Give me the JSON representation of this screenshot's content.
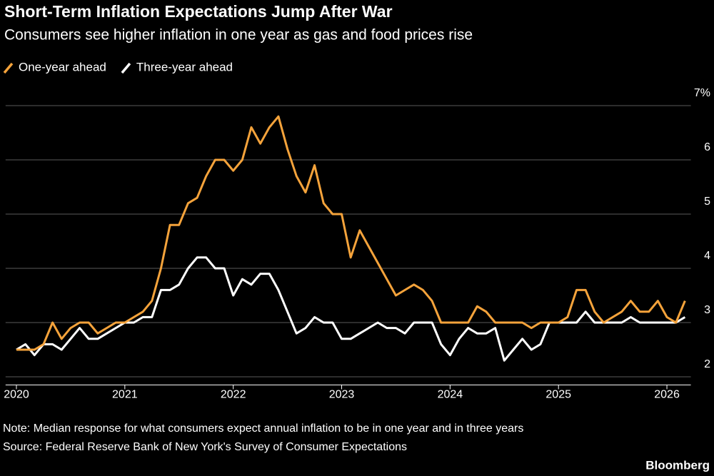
{
  "chart_data": {
    "type": "line",
    "title": "Short-Term Inflation Expectations Jump After War",
    "subtitle": "Consumers see higher inflation in one year as gas and food prices rise",
    "note": "Note: Median response for what consumers expect annual inflation to be in one year and in three years",
    "source": "Source: Federal Reserve Bank of New York's Survey of Consumer Expectations",
    "credit": "Bloomberg",
    "x": [
      "2020-01",
      "2020-02",
      "2020-03",
      "2020-04",
      "2020-05",
      "2020-06",
      "2020-07",
      "2020-08",
      "2020-09",
      "2020-10",
      "2020-11",
      "2020-12",
      "2021-01",
      "2021-02",
      "2021-03",
      "2021-04",
      "2021-05",
      "2021-06",
      "2021-07",
      "2021-08",
      "2021-09",
      "2021-10",
      "2021-11",
      "2021-12",
      "2022-01",
      "2022-02",
      "2022-03",
      "2022-04",
      "2022-05",
      "2022-06",
      "2022-07",
      "2022-08",
      "2022-09",
      "2022-10",
      "2022-11",
      "2022-12",
      "2023-01",
      "2023-02",
      "2023-03",
      "2023-04",
      "2023-05",
      "2023-06",
      "2023-07",
      "2023-08",
      "2023-09",
      "2023-10",
      "2023-11",
      "2023-12",
      "2024-01",
      "2024-02",
      "2024-03",
      "2024-04",
      "2024-05",
      "2024-06",
      "2024-07",
      "2024-08",
      "2024-09",
      "2024-10",
      "2024-11",
      "2024-12",
      "2025-01",
      "2025-02",
      "2025-03",
      "2025-04",
      "2025-05",
      "2025-06",
      "2025-07",
      "2025-08",
      "2025-09",
      "2025-10",
      "2025-11",
      "2025-12",
      "2026-01",
      "2026-02",
      "2026-03"
    ],
    "series": [
      {
        "name": "One-year ahead",
        "color": "#f5a33b",
        "values": [
          2.5,
          2.5,
          2.5,
          2.6,
          3.0,
          2.7,
          2.9,
          3.0,
          3.0,
          2.8,
          2.9,
          3.0,
          3.0,
          3.1,
          3.2,
          3.4,
          4.0,
          4.8,
          4.8,
          5.2,
          5.3,
          5.7,
          6.0,
          6.0,
          5.8,
          6.0,
          6.6,
          6.3,
          6.6,
          6.8,
          6.2,
          5.7,
          5.4,
          5.9,
          5.2,
          5.0,
          5.0,
          4.2,
          4.7,
          4.4,
          4.1,
          3.8,
          3.5,
          3.6,
          3.7,
          3.6,
          3.4,
          3.0,
          3.0,
          3.0,
          3.0,
          3.3,
          3.2,
          3.0,
          3.0,
          3.0,
          3.0,
          2.9,
          3.0,
          3.0,
          3.0,
          3.1,
          3.6,
          3.6,
          3.2,
          3.0,
          3.1,
          3.2,
          3.4,
          3.2,
          3.2,
          3.4,
          3.1,
          3.0,
          3.4
        ]
      },
      {
        "name": "Three-year ahead",
        "color": "#ffffff",
        "values": [
          2.5,
          2.6,
          2.4,
          2.6,
          2.6,
          2.5,
          2.7,
          2.9,
          2.7,
          2.7,
          2.8,
          2.9,
          3.0,
          3.0,
          3.1,
          3.1,
          3.6,
          3.6,
          3.7,
          4.0,
          4.2,
          4.2,
          4.0,
          4.0,
          3.5,
          3.8,
          3.7,
          3.9,
          3.9,
          3.6,
          3.2,
          2.8,
          2.9,
          3.1,
          3.0,
          3.0,
          2.7,
          2.7,
          2.8,
          2.9,
          3.0,
          2.9,
          2.9,
          2.8,
          3.0,
          3.0,
          3.0,
          2.6,
          2.4,
          2.7,
          2.9,
          2.8,
          2.8,
          2.9,
          2.3,
          2.5,
          2.7,
          2.5,
          2.6,
          3.0,
          3.0,
          3.0,
          3.0,
          3.2,
          3.0,
          3.0,
          3.0,
          3.0,
          3.1,
          3.0,
          3.0,
          3.0,
          3.0,
          3.0,
          3.1
        ]
      }
    ],
    "xlim": [
      2019.9,
      2026.3
    ],
    "xticks": [
      2020,
      2021,
      2022,
      2023,
      2024,
      2025,
      2026
    ],
    "ylim": [
      1.85,
      7.35
    ],
    "yticks": [
      2,
      3,
      4,
      5,
      6,
      {
        "value": 7,
        "label": "7%"
      }
    ],
    "grid": true
  }
}
